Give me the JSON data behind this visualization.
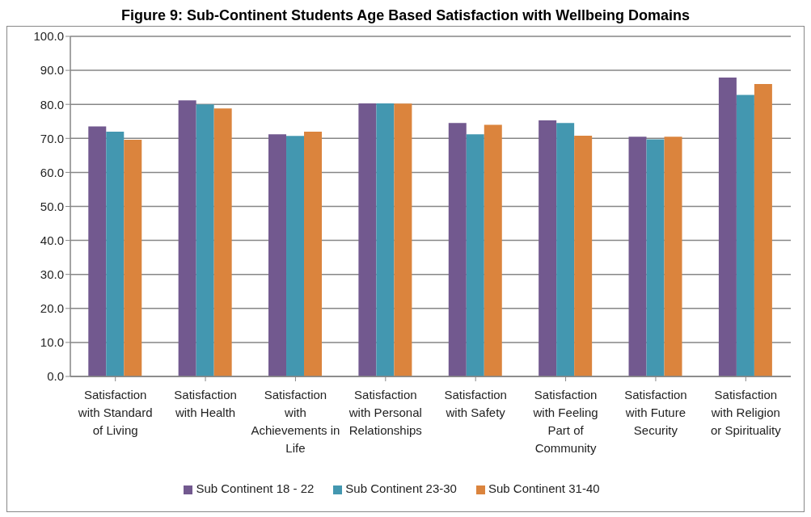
{
  "chart_data": {
    "type": "bar",
    "title": "Figure 9: Sub-Continent Students Age Based Satisfaction with Wellbeing Domains",
    "categories": [
      "Satisfaction with Standard of Living",
      "Satisfaction with Health",
      "Satisfaction with Achievements in Life",
      "Satisfaction with Personal Relationships",
      "Satisfaction with Safety",
      "Satisfaction with Feeling Part of Community",
      "Satisfaction with Future Security",
      "Satisfaction with Religion or Spirituality"
    ],
    "series": [
      {
        "name": "Sub Continent 18 - 22",
        "color": "#72598f",
        "values": [
          73.5,
          81.2,
          71.2,
          80.3,
          74.5,
          75.3,
          70.5,
          87.9
        ]
      },
      {
        "name": "Sub Continent 23-30",
        "color": "#4397b0",
        "values": [
          72.0,
          80.0,
          70.7,
          80.3,
          71.2,
          74.5,
          69.7,
          82.8
        ]
      },
      {
        "name": "Sub Continent 31-40",
        "color": "#db843d",
        "values": [
          69.6,
          78.8,
          72.0,
          80.2,
          74.0,
          70.8,
          70.5,
          86.0
        ]
      }
    ],
    "ylim": [
      0,
      100
    ],
    "yticks": [
      {
        "value": 0,
        "label": "0.0"
      },
      {
        "value": 10,
        "label": "10.0"
      },
      {
        "value": 20,
        "label": "20.0"
      },
      {
        "value": 30,
        "label": "30.0"
      },
      {
        "value": 40,
        "label": "40.0"
      },
      {
        "value": 50,
        "label": "50.0"
      },
      {
        "value": 60,
        "label": "60.0"
      },
      {
        "value": 70,
        "label": "70.0"
      },
      {
        "value": 80,
        "label": "80.0"
      },
      {
        "value": 90,
        "label": "90.0"
      },
      {
        "value": 100,
        "label": "100.0"
      }
    ],
    "grid": "y",
    "legend": "bottom"
  }
}
